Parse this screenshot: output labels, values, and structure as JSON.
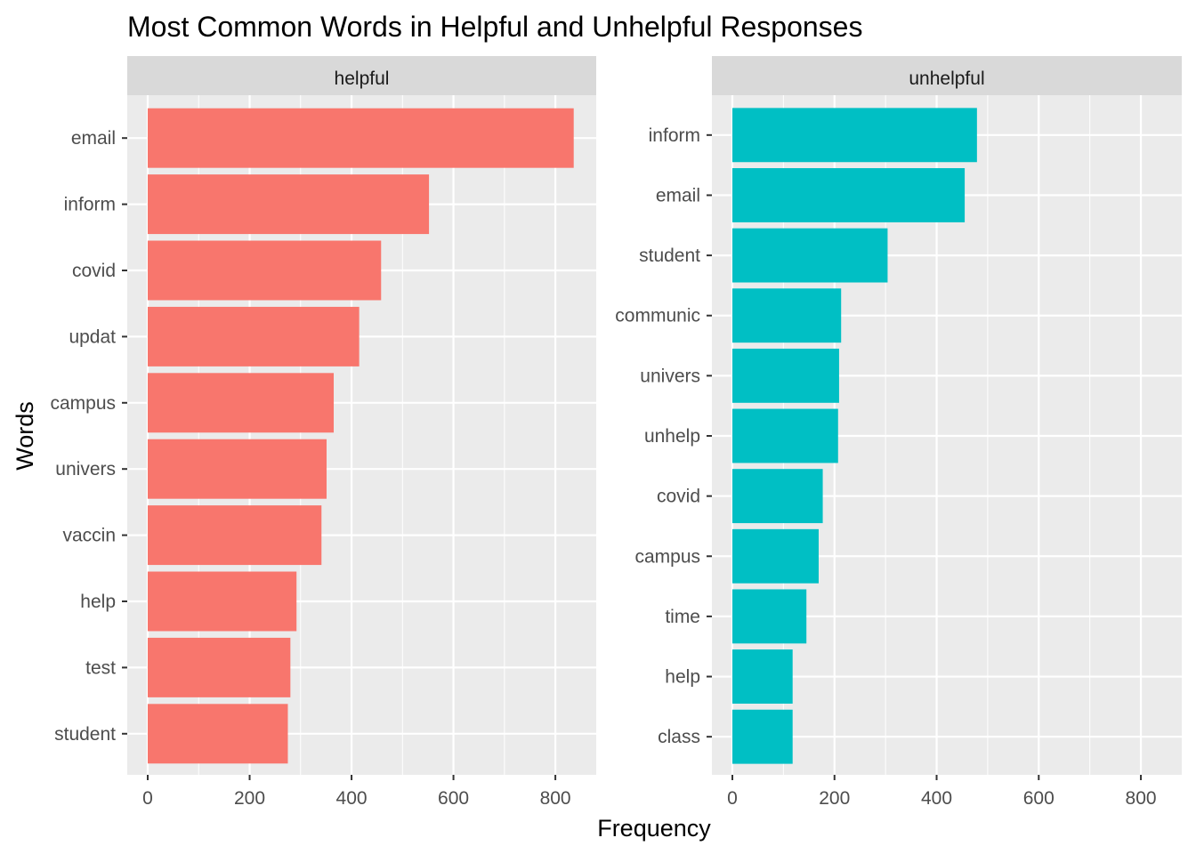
{
  "chart_data": {
    "type": "bar",
    "orientation": "horizontal",
    "title": "Most Common Words in Helpful and Unhelpful Responses",
    "xlabel": "Frequency",
    "ylabel": "Words",
    "xlim": [
      0,
      880
    ],
    "xticks": [
      0,
      200,
      400,
      600,
      800
    ],
    "grid": true,
    "legend": "none",
    "panels": [
      {
        "name": "helpful",
        "color": "#F8766D",
        "categories": [
          "email",
          "inform",
          "covid",
          "updat",
          "campus",
          "univers",
          "vaccin",
          "help",
          "test",
          "student"
        ],
        "values": [
          836,
          552,
          458,
          415,
          365,
          351,
          341,
          292,
          280,
          275
        ]
      },
      {
        "name": "unhelpful",
        "color": "#00BFC4",
        "categories": [
          "inform",
          "email",
          "student",
          "communic",
          "univers",
          "unhelp",
          "covid",
          "campus",
          "time",
          "help",
          "class"
        ],
        "values": [
          479,
          455,
          304,
          213,
          209,
          207,
          177,
          169,
          145,
          118,
          118
        ]
      }
    ]
  }
}
